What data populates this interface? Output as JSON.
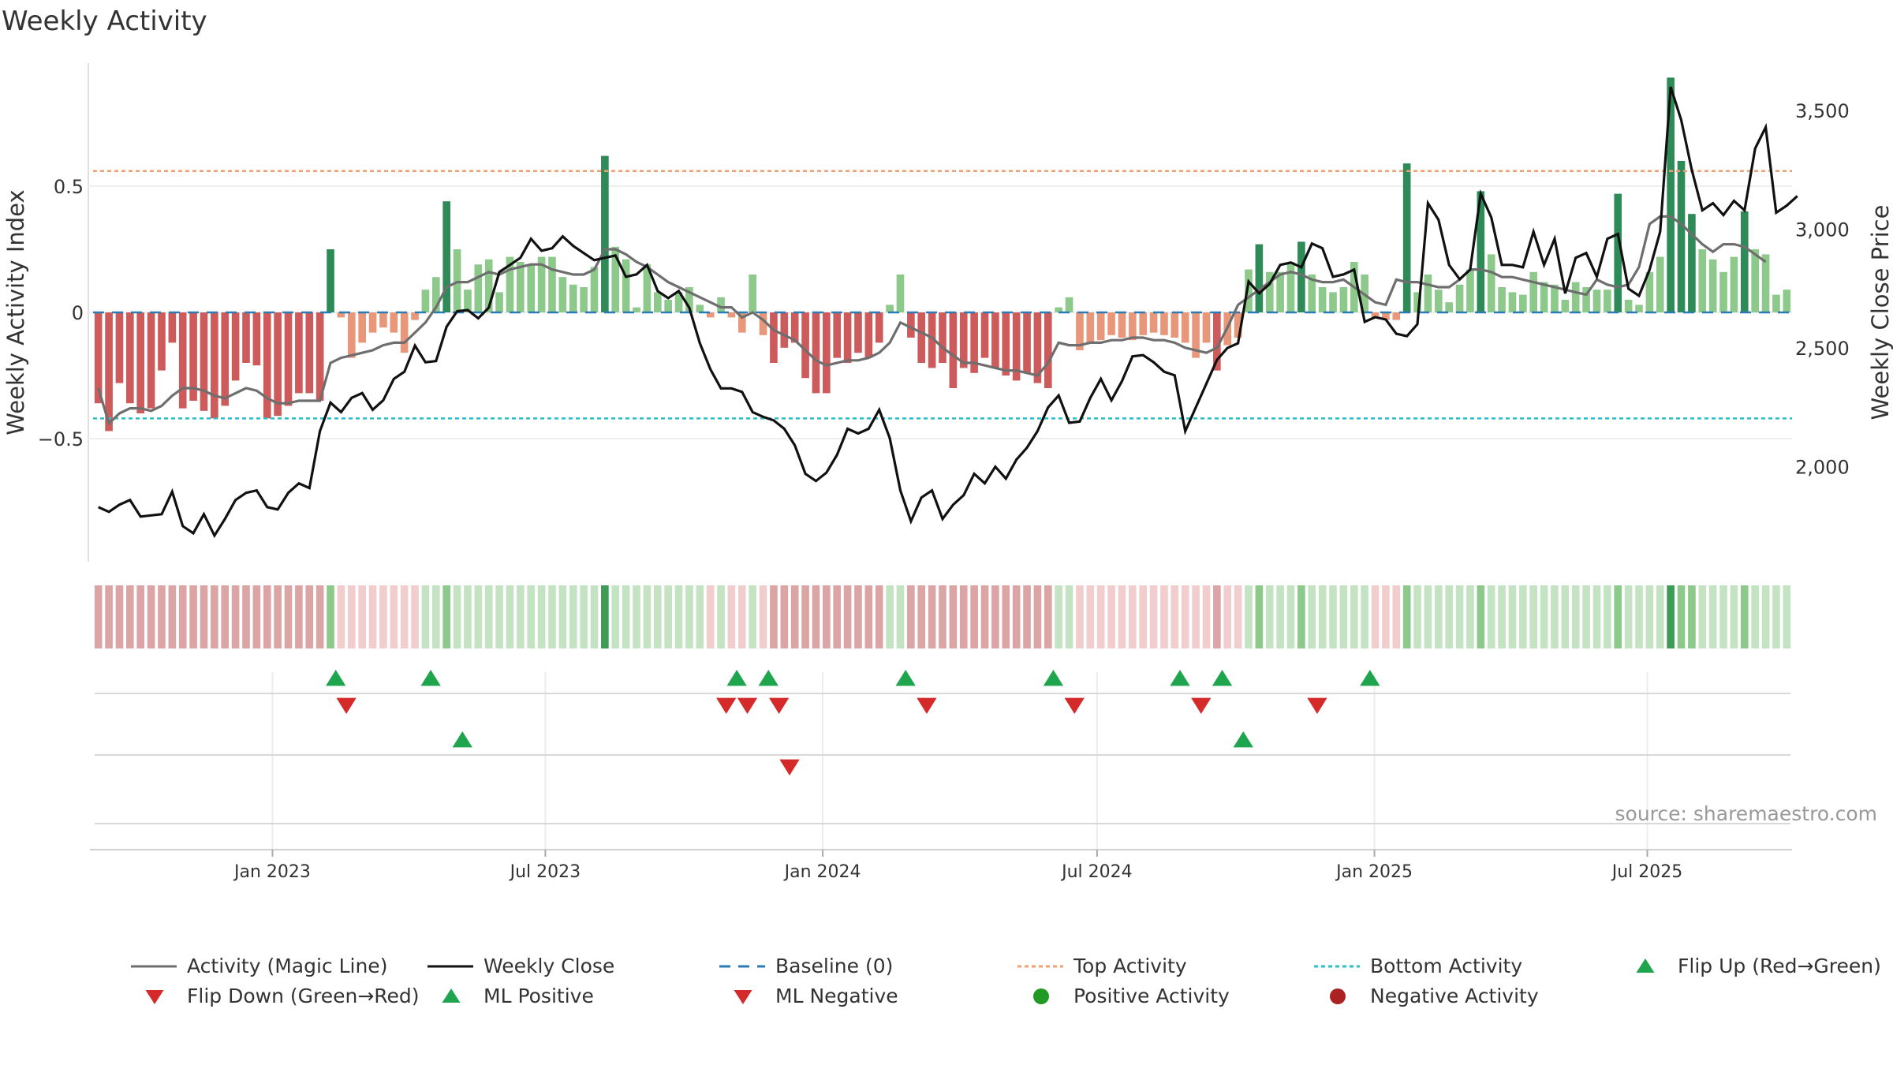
{
  "title": "Weekly Activity",
  "source_note": "source: sharemaestro.com",
  "colors": {
    "pos_strong": "#2e8a57",
    "pos_light": "#8cc98a",
    "neg_strong": "#cd5b5b",
    "neg_light": "#e8977a",
    "magic_line": "#6e6e6e",
    "close_line": "#111111",
    "baseline": "#2b7bb4",
    "top_line": "#f0a070",
    "bottom_line": "#28c1c8",
    "flip_up": "#1fa54e",
    "flip_down": "#d42a2a",
    "positive_dot": "#229922",
    "negative_dot": "#aa2222"
  },
  "chart_data": {
    "type": "bar",
    "title": "Weekly Activity",
    "ylabel": "Weekly Activity Index",
    "y2label": "Weekly Close Price",
    "ylim": [
      -1.0,
      1.0
    ],
    "y2lim": [
      1600,
      3700
    ],
    "yticks": [
      {
        "v": 0.5,
        "label": "0.5"
      },
      {
        "v": 0,
        "label": "0"
      },
      {
        "v": -0.5,
        "label": "−0.5"
      }
    ],
    "y2ticks": [
      {
        "v": 3500,
        "label": "3,500"
      },
      {
        "v": 3000,
        "label": "3,000"
      },
      {
        "v": 2500,
        "label": "2,500"
      },
      {
        "v": 2000,
        "label": "2,000"
      }
    ],
    "x_start": "2022-09-04",
    "x_end": "2025-10-05",
    "xticks": [
      {
        "date": "2023-01-01",
        "label": "Jan 2023"
      },
      {
        "date": "2023-07-01",
        "label": "Jul 2023"
      },
      {
        "date": "2024-01-01",
        "label": "Jan 2024"
      },
      {
        "date": "2024-07-01",
        "label": "Jul 2024"
      },
      {
        "date": "2025-01-01",
        "label": "Jan 2025"
      },
      {
        "date": "2025-07-01",
        "label": "Jul 2025"
      }
    ],
    "top_activity": 0.56,
    "bottom_activity": -0.42,
    "baseline": 0,
    "activity": [
      -0.36,
      -0.47,
      -0.28,
      -0.36,
      -0.4,
      -0.38,
      -0.23,
      -0.12,
      -0.38,
      -0.35,
      -0.39,
      -0.42,
      -0.37,
      -0.27,
      -0.2,
      -0.21,
      -0.42,
      -0.41,
      -0.37,
      -0.32,
      -0.32,
      -0.35,
      0.25,
      -0.02,
      -0.18,
      -0.12,
      -0.08,
      -0.06,
      -0.08,
      -0.16,
      -0.03,
      0.09,
      0.14,
      0.44,
      0.25,
      0.09,
      0.19,
      0.21,
      0.08,
      0.22,
      0.2,
      0.19,
      0.22,
      0.22,
      0.14,
      0.11,
      0.1,
      0.18,
      0.62,
      0.26,
      0.21,
      0.02,
      0.19,
      0.08,
      0.05,
      0.08,
      0.1,
      0.03,
      -0.02,
      0.06,
      -0.02,
      -0.08,
      0.15,
      -0.09,
      -0.2,
      -0.14,
      -0.12,
      -0.26,
      -0.32,
      -0.32,
      -0.18,
      -0.2,
      -0.16,
      -0.18,
      -0.12,
      0.03,
      0.15,
      -0.1,
      -0.2,
      -0.22,
      -0.2,
      -0.3,
      -0.22,
      -0.24,
      -0.18,
      -0.22,
      -0.25,
      -0.27,
      -0.24,
      -0.28,
      -0.3,
      0.02,
      0.06,
      -0.15,
      -0.12,
      -0.11,
      -0.09,
      -0.1,
      -0.11,
      -0.09,
      -0.08,
      -0.09,
      -0.1,
      -0.12,
      -0.18,
      -0.12,
      -0.23,
      -0.13,
      -0.1,
      0.17,
      0.27,
      0.16,
      0.16,
      0.2,
      0.28,
      0.15,
      0.1,
      0.08,
      0.1,
      0.2,
      0.15,
      -0.02,
      -0.03,
      -0.03,
      0.59,
      0.08,
      0.15,
      0.09,
      0.04,
      0.11,
      0.17,
      0.48,
      0.23,
      0.1,
      0.08,
      0.07,
      0.16,
      0.12,
      0.11,
      0.05,
      0.12,
      0.1,
      0.09,
      0.09,
      0.47,
      0.05,
      0.03,
      0.16,
      0.22,
      0.93,
      0.6,
      0.39,
      0.25,
      0.21,
      0.16,
      0.22,
      0.4,
      0.25,
      0.23,
      0.07,
      0.09
    ],
    "magic_line": [
      -0.3,
      -0.44,
      -0.4,
      -0.38,
      -0.38,
      -0.39,
      -0.37,
      -0.33,
      -0.3,
      -0.3,
      -0.31,
      -0.33,
      -0.34,
      -0.32,
      -0.3,
      -0.31,
      -0.34,
      -0.36,
      -0.36,
      -0.35,
      -0.35,
      -0.35,
      -0.2,
      -0.18,
      -0.17,
      -0.16,
      -0.15,
      -0.13,
      -0.12,
      -0.12,
      -0.08,
      -0.04,
      0.02,
      0.1,
      0.12,
      0.12,
      0.14,
      0.16,
      0.15,
      0.17,
      0.18,
      0.19,
      0.19,
      0.17,
      0.16,
      0.15,
      0.15,
      0.17,
      0.25,
      0.25,
      0.23,
      0.2,
      0.18,
      0.15,
      0.12,
      0.1,
      0.08,
      0.06,
      0.04,
      0.02,
      0.02,
      -0.02,
      0.0,
      -0.03,
      -0.07,
      -0.09,
      -0.11,
      -0.15,
      -0.19,
      -0.21,
      -0.2,
      -0.19,
      -0.19,
      -0.18,
      -0.16,
      -0.12,
      -0.04,
      -0.06,
      -0.08,
      -0.1,
      -0.14,
      -0.17,
      -0.2,
      -0.2,
      -0.21,
      -0.22,
      -0.23,
      -0.23,
      -0.24,
      -0.25,
      -0.2,
      -0.12,
      -0.13,
      -0.13,
      -0.12,
      -0.12,
      -0.11,
      -0.11,
      -0.1,
      -0.1,
      -0.11,
      -0.11,
      -0.12,
      -0.14,
      -0.15,
      -0.16,
      -0.14,
      -0.06,
      0.03,
      0.06,
      0.09,
      0.12,
      0.15,
      0.16,
      0.15,
      0.13,
      0.12,
      0.12,
      0.13,
      0.1,
      0.07,
      0.04,
      0.03,
      0.13,
      0.12,
      0.12,
      0.11,
      0.1,
      0.1,
      0.13,
      0.17,
      0.17,
      0.16,
      0.14,
      0.14,
      0.13,
      0.12,
      0.11,
      0.1,
      0.09,
      0.08,
      0.07,
      0.13,
      0.11,
      0.1,
      0.11,
      0.18,
      0.35,
      0.38,
      0.38,
      0.35,
      0.31,
      0.27,
      0.24,
      0.27,
      0.27,
      0.26,
      0.23,
      0.2
    ],
    "weekly_close": [
      1830,
      1810,
      1840,
      1860,
      1790,
      1795,
      1800,
      1895,
      1750,
      1720,
      1800,
      1710,
      1780,
      1860,
      1890,
      1900,
      1830,
      1820,
      1890,
      1930,
      1910,
      2150,
      2270,
      2230,
      2290,
      2310,
      2240,
      2280,
      2370,
      2400,
      2510,
      2440,
      2445,
      2590,
      2655,
      2660,
      2625,
      2670,
      2820,
      2850,
      2880,
      2960,
      2910,
      2920,
      2970,
      2930,
      2900,
      2870,
      2880,
      2890,
      2800,
      2810,
      2850,
      2740,
      2710,
      2740,
      2670,
      2520,
      2410,
      2330,
      2330,
      2315,
      2230,
      2210,
      2195,
      2160,
      2090,
      1970,
      1940,
      1975,
      2050,
      2160,
      2140,
      2160,
      2240,
      2120,
      1900,
      1770,
      1870,
      1900,
      1780,
      1840,
      1880,
      1970,
      1930,
      2000,
      1950,
      2030,
      2080,
      2150,
      2250,
      2300,
      2185,
      2190,
      2290,
      2370,
      2280,
      2360,
      2465,
      2470,
      2440,
      2400,
      2385,
      2150,
      2250,
      2350,
      2450,
      2500,
      2520,
      2780,
      2730,
      2770,
      2850,
      2860,
      2840,
      2940,
      2920,
      2800,
      2810,
      2830,
      2610,
      2630,
      2620,
      2560,
      2550,
      2600,
      3110,
      3040,
      2850,
      2790,
      2830,
      3150,
      3050,
      2850,
      2850,
      2840,
      2990,
      2850,
      2960,
      2730,
      2880,
      2900,
      2800,
      2960,
      2980,
      2750,
      2720,
      2830,
      2990,
      3600,
      3460,
      3250,
      3080,
      3110,
      3060,
      3120,
      3080,
      3340,
      3430,
      3070,
      3100,
      3140
    ],
    "activity_levels": [
      -2,
      -2,
      -2,
      -2,
      -2,
      -2,
      -2,
      -2,
      -2,
      -2,
      -2,
      -2,
      -2,
      -2,
      -2,
      -2,
      -2,
      -2,
      -2,
      -2,
      -2,
      -2,
      2,
      -1,
      -1,
      -1,
      -1,
      -1,
      -1,
      -1,
      -1,
      1,
      1,
      2,
      1,
      1,
      1,
      1,
      1,
      1,
      1,
      1,
      1,
      1,
      1,
      1,
      1,
      1,
      3,
      1,
      1,
      1,
      1,
      1,
      1,
      1,
      1,
      1,
      -1,
      1,
      -1,
      -1,
      1,
      -1,
      -2,
      -2,
      -2,
      -2,
      -2,
      -2,
      -2,
      -2,
      -2,
      -2,
      -2,
      1,
      1,
      -2,
      -2,
      -2,
      -2,
      -2,
      -2,
      -2,
      -2,
      -2,
      -2,
      -2,
      -2,
      -2,
      -2,
      1,
      1,
      -1,
      -1,
      -1,
      -1,
      -1,
      -1,
      -1,
      -1,
      -1,
      -1,
      -1,
      -1,
      -1,
      -2,
      -1,
      -1,
      1,
      2,
      1,
      1,
      1,
      2,
      1,
      1,
      1,
      1,
      1,
      1,
      -1,
      -1,
      -1,
      2,
      1,
      1,
      1,
      1,
      1,
      1,
      2,
      1,
      1,
      1,
      1,
      1,
      1,
      1,
      1,
      1,
      1,
      1,
      1,
      2,
      1,
      1,
      1,
      1,
      3,
      2,
      2,
      1,
      1,
      1,
      1,
      2,
      1,
      1,
      1,
      1
    ],
    "flip_up": [
      "2023-02-12",
      "2023-04-16",
      "2023-11-05",
      "2023-11-26",
      "2024-02-25",
      "2024-06-02",
      "2024-08-25",
      "2024-09-22",
      "2024-12-29"
    ],
    "flip_down": [
      "2023-02-19",
      "2023-10-29",
      "2023-11-12",
      "2023-12-03",
      "2024-03-10",
      "2024-06-16",
      "2024-09-08",
      "2024-11-24"
    ],
    "ml_positive": [
      "2023-05-07",
      "2024-10-06"
    ],
    "ml_negative": [
      "2023-12-10"
    ],
    "positive_activity": [],
    "negative_activity": []
  },
  "legend": [
    {
      "label": "Activity (Magic Line)",
      "marker": "line-solid-grey"
    },
    {
      "label": "Weekly Close",
      "marker": "line-solid-black"
    },
    {
      "label": "Baseline (0)",
      "marker": "line-dashed-blue"
    },
    {
      "label": "Top Activity",
      "marker": "line-dotted-orange"
    },
    {
      "label": "Bottom Activity",
      "marker": "line-dotted-cyan"
    },
    {
      "label": "Flip Up (Red→Green)",
      "marker": "triangle-up-green"
    },
    {
      "label": "Flip Down (Green→Red)",
      "marker": "triangle-down-red"
    },
    {
      "label": "ML Positive",
      "marker": "triangle-up-green"
    },
    {
      "label": "ML Negative",
      "marker": "triangle-down-red"
    },
    {
      "label": "Positive Activity",
      "marker": "circle-green"
    },
    {
      "label": "Negative Activity",
      "marker": "circle-darkred"
    }
  ]
}
